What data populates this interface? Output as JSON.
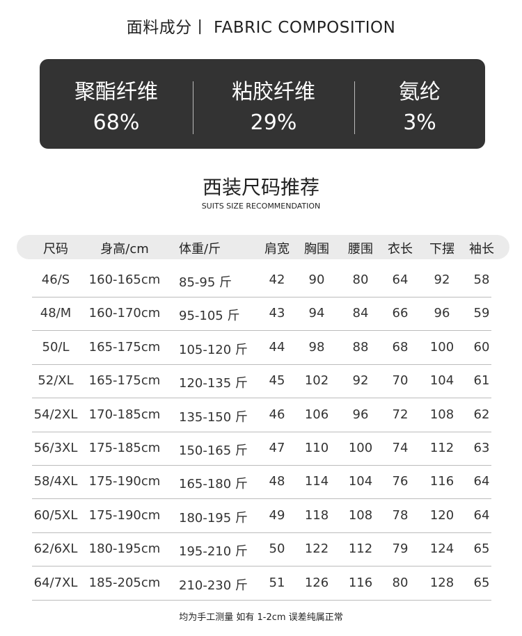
{
  "title": "面料成分丨 FABRIC COMPOSITION",
  "composition": [
    {
      "name": "聚酯纤维",
      "percent": "68%"
    },
    {
      "name": "粘胶纤维",
      "percent": "29%"
    },
    {
      "name": "氨纶",
      "percent": "3%"
    }
  ],
  "section_title": "西装尺码推荐",
  "section_subtitle": "SUITS SIZE RECOMMENDATION",
  "table": {
    "headers": [
      "尺码",
      "身高/cm",
      "体重/斤",
      "肩宽",
      "胸围",
      "腰围",
      "衣长",
      "下摆",
      "袖长"
    ],
    "rows": [
      [
        "46/S",
        "160-165cm",
        "85-95 斤",
        "42",
        "90",
        "80",
        "64",
        "92",
        "58"
      ],
      [
        "48/M",
        "160-170cm",
        "95-105 斤",
        "43",
        "94",
        "84",
        "66",
        "96",
        "59"
      ],
      [
        "50/L",
        "165-175cm",
        "105-120 斤",
        "44",
        "98",
        "88",
        "68",
        "100",
        "60"
      ],
      [
        "52/XL",
        "165-175cm",
        "120-135 斤",
        "45",
        "102",
        "92",
        "70",
        "104",
        "61"
      ],
      [
        "54/2XL",
        "170-185cm",
        "135-150 斤",
        "46",
        "106",
        "96",
        "72",
        "108",
        "62"
      ],
      [
        "56/3XL",
        "175-185cm",
        "150-165 斤",
        "47",
        "110",
        "100",
        "74",
        "112",
        "63"
      ],
      [
        "58/4XL",
        "175-190cm",
        "165-180 斤",
        "48",
        "114",
        "104",
        "76",
        "116",
        "64"
      ],
      [
        "60/5XL",
        "175-190cm",
        "180-195 斤",
        "49",
        "118",
        "108",
        "78",
        "120",
        "64"
      ],
      [
        "62/6XL",
        "180-195cm",
        "195-210 斤",
        "50",
        "122",
        "112",
        "79",
        "124",
        "65"
      ],
      [
        "64/7XL",
        "185-205cm",
        "210-230 斤",
        "51",
        "126",
        "116",
        "80",
        "128",
        "65"
      ]
    ]
  },
  "note": "均为手工测量 如有 1-2cm 误差纯属正常",
  "colors": {
    "panel": "#333333",
    "header_bg": "#ebebeb"
  }
}
